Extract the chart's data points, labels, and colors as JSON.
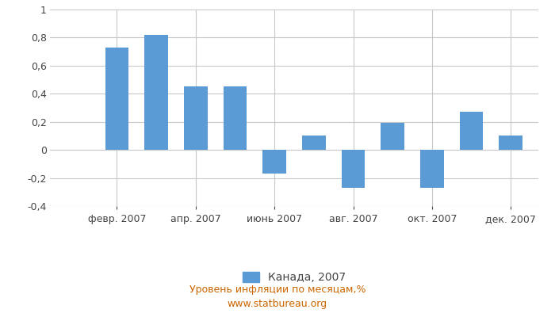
{
  "months_count": 12,
  "values": [
    0.0,
    0.73,
    0.82,
    0.45,
    0.45,
    -0.17,
    0.1,
    -0.27,
    0.19,
    -0.27,
    0.27,
    0.1
  ],
  "x_tick_labels": [
    "февр. 2007",
    "апр. 2007",
    "июнь 2007",
    "авг. 2007",
    "окт. 2007",
    "дек. 2007"
  ],
  "x_tick_positions": [
    1,
    3,
    5,
    7,
    9,
    11
  ],
  "bar_color": "#5b9bd5",
  "ylim": [
    -0.4,
    1.0
  ],
  "yticks": [
    -0.4,
    -0.2,
    0.0,
    0.2,
    0.4,
    0.6,
    0.8,
    1.0
  ],
  "legend_label": "Канада, 2007",
  "subtitle": "Уровень инфляции по месяцам,%",
  "source": "www.statbureau.org",
  "background_color": "#ffffff",
  "grid_color": "#c8c8c8",
  "tick_fontsize": 9,
  "legend_fontsize": 10,
  "subtitle_fontsize": 9,
  "bar_width": 0.6
}
